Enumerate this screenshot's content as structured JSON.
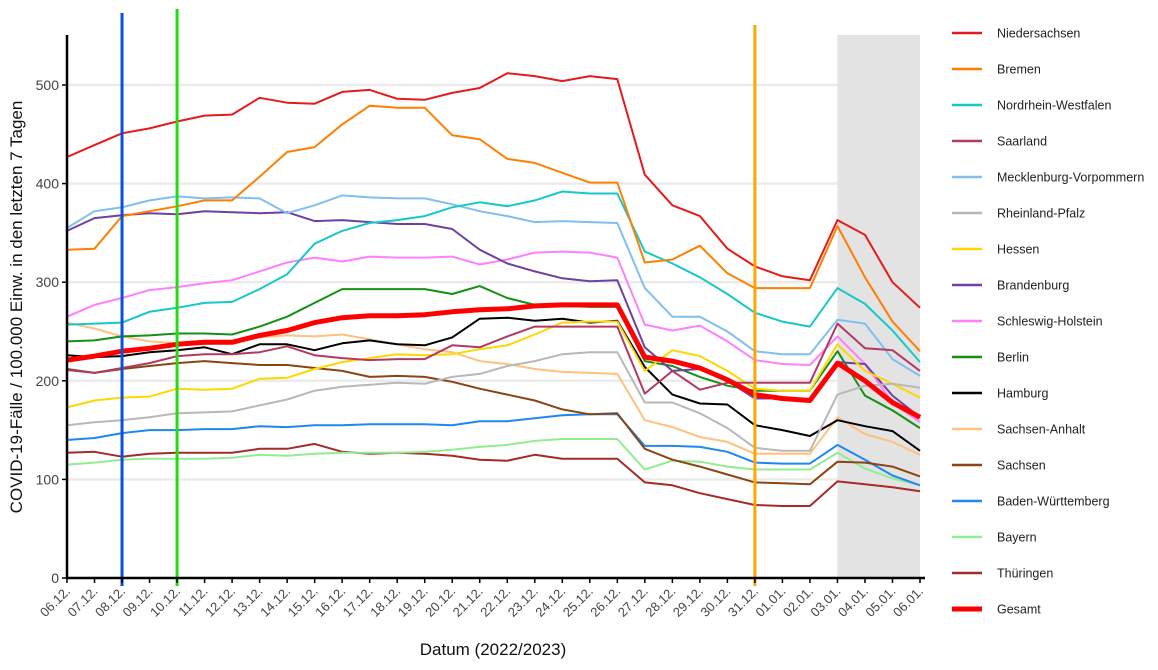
{
  "chart_data": {
    "type": "line",
    "title": "",
    "xlabel": "Datum (2022/2023)",
    "ylabel": "COVID-19-Fälle / 100.000 Einw. in den letzten 7 Tagen",
    "ylim": [
      0,
      550
    ],
    "yticks": [
      0,
      100,
      200,
      300,
      400,
      500
    ],
    "grid": true,
    "legend_position": "right",
    "x": [
      "06.12.",
      "07.12.",
      "08.12.",
      "09.12.",
      "10.12.",
      "11.12.",
      "12.12.",
      "13.12.",
      "14.12.",
      "15.12.",
      "16.12.",
      "17.12.",
      "18.12.",
      "19.12.",
      "20.12.",
      "21.12.",
      "22.12.",
      "23.12.",
      "24.12.",
      "25.12.",
      "26.12.",
      "27.12.",
      "28.12.",
      "29.12.",
      "30.12.",
      "31.12.",
      "01.01.",
      "02.01.",
      "03.01.",
      "04.01.",
      "05.01.",
      "06.01."
    ],
    "vertical_lines": [
      {
        "x": "08.12.",
        "color": "#0a50e0"
      },
      {
        "x": "10.12.",
        "color": "#22dd11"
      },
      {
        "x": "31.12.",
        "color": "#ffa500"
      }
    ],
    "shaded_range": {
      "from": "03.01.",
      "to": "06.01.",
      "color": "#e3e3e3"
    },
    "series": [
      {
        "name": "Niedersachsen",
        "color": "#e41a1c",
        "values": [
          427,
          439,
          451,
          456,
          463,
          469,
          470,
          487,
          482,
          481,
          493,
          495,
          486,
          485,
          492,
          497,
          512,
          509,
          504,
          509,
          506,
          409,
          378,
          367,
          334,
          316,
          306,
          302,
          363,
          348,
          300,
          274
        ]
      },
      {
        "name": "Bremen",
        "color": "#ff7f00",
        "values": [
          333,
          334,
          367,
          372,
          377,
          383,
          383,
          407,
          432,
          437,
          460,
          479,
          477,
          477,
          449,
          445,
          425,
          421,
          411,
          401,
          401,
          320,
          323,
          337,
          309,
          294,
          294,
          294,
          357,
          305,
          260,
          230
        ]
      },
      {
        "name": "Nordrhein-Westfalen",
        "color": "#17c8c8",
        "values": [
          257,
          258,
          259,
          270,
          274,
          279,
          280,
          293,
          308,
          339,
          352,
          360,
          363,
          367,
          376,
          381,
          377,
          383,
          392,
          390,
          390,
          331,
          319,
          305,
          288,
          269,
          260,
          255,
          294,
          278,
          251,
          219
        ]
      },
      {
        "name": "Saarland",
        "color": "#b03a62",
        "values": [
          211,
          208,
          213,
          218,
          225,
          227,
          227,
          229,
          235,
          226,
          223,
          221,
          222,
          222,
          236,
          234,
          245,
          255,
          255,
          255,
          255,
          187,
          210,
          191,
          198,
          198,
          198,
          198,
          258,
          233,
          231,
          210
        ]
      },
      {
        "name": "Mecklenburg-Vorpommern",
        "color": "#80bff0",
        "values": [
          355,
          372,
          376,
          383,
          387,
          385,
          386,
          385,
          370,
          378,
          388,
          386,
          385,
          385,
          379,
          372,
          367,
          361,
          362,
          361,
          360,
          294,
          265,
          265,
          250,
          230,
          227,
          227,
          262,
          258,
          222,
          205
        ]
      },
      {
        "name": "Rheinland-Pfalz",
        "color": "#b8b8b8",
        "values": [
          155,
          158,
          160,
          163,
          167,
          168,
          169,
          175,
          181,
          190,
          194,
          196,
          198,
          197,
          204,
          207,
          215,
          220,
          227,
          229,
          229,
          178,
          178,
          167,
          152,
          132,
          129,
          129,
          186,
          195,
          197,
          193
        ]
      },
      {
        "name": "Hessen",
        "color": "#ffd700",
        "values": [
          173,
          180,
          183,
          184,
          192,
          191,
          192,
          202,
          203,
          212,
          219,
          223,
          227,
          226,
          227,
          232,
          236,
          247,
          259,
          260,
          260,
          210,
          231,
          225,
          210,
          192,
          190,
          190,
          237,
          210,
          197,
          183
        ]
      },
      {
        "name": "Brandenburg",
        "color": "#7040a0",
        "values": [
          352,
          365,
          368,
          370,
          369,
          372,
          371,
          370,
          371,
          362,
          363,
          361,
          359,
          359,
          354,
          333,
          319,
          311,
          304,
          301,
          302,
          234,
          210,
          212,
          200,
          182,
          182,
          180,
          219,
          217,
          185,
          163
        ]
      },
      {
        "name": "Schleswig-Holstein",
        "color": "#ff80ff",
        "values": [
          265,
          277,
          284,
          292,
          295,
          299,
          302,
          311,
          320,
          325,
          321,
          326,
          325,
          325,
          326,
          318,
          323,
          330,
          331,
          330,
          325,
          257,
          251,
          256,
          240,
          221,
          217,
          216,
          245,
          217,
          178,
          158
        ]
      },
      {
        "name": "Berlin",
        "color": "#149014",
        "values": [
          240,
          241,
          245,
          246,
          248,
          248,
          247,
          255,
          265,
          279,
          293,
          293,
          293,
          293,
          288,
          296,
          284,
          277,
          276,
          275,
          275,
          220,
          215,
          204,
          195,
          190,
          190,
          190,
          230,
          185,
          170,
          152
        ]
      },
      {
        "name": "Hamburg",
        "color": "#000000",
        "values": [
          226,
          224,
          225,
          229,
          231,
          234,
          227,
          237,
          237,
          231,
          238,
          241,
          237,
          236,
          244,
          263,
          264,
          261,
          263,
          259,
          261,
          214,
          186,
          177,
          176,
          155,
          150,
          144,
          160,
          154,
          149,
          129
        ]
      },
      {
        "name": "Sachsen-Anhalt",
        "color": "#ffc080",
        "values": [
          259,
          253,
          245,
          240,
          238,
          237,
          239,
          244,
          246,
          245,
          247,
          242,
          237,
          232,
          229,
          220,
          217,
          212,
          209,
          208,
          207,
          160,
          153,
          143,
          138,
          126,
          126,
          126,
          163,
          146,
          138,
          125
        ]
      },
      {
        "name": "Sachsen",
        "color": "#8b4513",
        "values": [
          212,
          208,
          212,
          215,
          218,
          220,
          218,
          216,
          216,
          213,
          210,
          204,
          205,
          204,
          199,
          192,
          186,
          180,
          171,
          166,
          167,
          131,
          120,
          113,
          105,
          97,
          96,
          95,
          118,
          117,
          113,
          103
        ]
      },
      {
        "name": "Baden-Württemberg",
        "color": "#1e88f0",
        "values": [
          140,
          142,
          147,
          150,
          150,
          151,
          151,
          154,
          153,
          155,
          155,
          156,
          156,
          156,
          155,
          159,
          159,
          162,
          165,
          166,
          166,
          134,
          134,
          133,
          128,
          117,
          116,
          116,
          135,
          120,
          104,
          94
        ]
      },
      {
        "name": "Bayern",
        "color": "#90ee90",
        "values": [
          115,
          117,
          120,
          121,
          121,
          121,
          122,
          125,
          124,
          126,
          127,
          127,
          127,
          128,
          130,
          133,
          135,
          139,
          141,
          141,
          141,
          110,
          119,
          118,
          113,
          110,
          110,
          110,
          127,
          111,
          101,
          94
        ]
      },
      {
        "name": "Thüringen",
        "color": "#a52a2a",
        "values": [
          127,
          128,
          123,
          126,
          127,
          127,
          127,
          131,
          131,
          136,
          128,
          126,
          127,
          126,
          124,
          120,
          119,
          125,
          121,
          121,
          121,
          97,
          94,
          86,
          80,
          74,
          73,
          73,
          98,
          95,
          92,
          88
        ]
      },
      {
        "name": "Gesamt",
        "color": "#ff0000",
        "bold": true,
        "values": [
          221,
          225,
          230,
          233,
          237,
          239,
          239,
          246,
          251,
          259,
          264,
          266,
          266,
          267,
          270,
          272,
          273,
          276,
          277,
          277,
          277,
          224,
          220,
          213,
          201,
          186,
          182,
          180,
          218,
          200,
          178,
          163
        ]
      }
    ]
  }
}
